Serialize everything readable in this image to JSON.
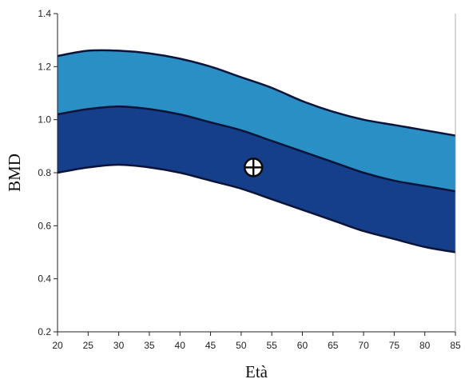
{
  "chart_data": {
    "type": "area",
    "title": "",
    "xlabel": "Età",
    "ylabel": "BMD",
    "xlim": [
      20,
      85
    ],
    "ylim": [
      0.2,
      1.4
    ],
    "x_ticks": [
      20,
      25,
      30,
      35,
      40,
      45,
      50,
      55,
      60,
      65,
      70,
      75,
      80,
      85
    ],
    "y_ticks": [
      0.2,
      0.4,
      0.6,
      0.8,
      1.0,
      1.2,
      1.4
    ],
    "x_tick_labels": [
      "20",
      "25",
      "30",
      "35",
      "40",
      "45",
      "50",
      "55",
      "60",
      "65",
      "70",
      "75",
      "80",
      "85"
    ],
    "y_tick_labels": [
      "0.2",
      "0.4",
      "0.6",
      "0.8",
      "1.0",
      "1.2",
      "1.4"
    ],
    "x": [
      20,
      25,
      30,
      35,
      40,
      45,
      50,
      55,
      60,
      65,
      70,
      75,
      80,
      85
    ],
    "bands": [
      {
        "color": "#2a8fc4",
        "lower": [
          1.02,
          1.04,
          1.05,
          1.04,
          1.02,
          0.99,
          0.96,
          0.92,
          0.88,
          0.84,
          0.8,
          0.77,
          0.75,
          0.73
        ],
        "upper": [
          1.24,
          1.26,
          1.26,
          1.25,
          1.23,
          1.2,
          1.16,
          1.12,
          1.07,
          1.03,
          1.0,
          0.98,
          0.96,
          0.94
        ]
      },
      {
        "color": "#153f8a",
        "lower": [
          0.8,
          0.82,
          0.83,
          0.82,
          0.8,
          0.77,
          0.74,
          0.7,
          0.66,
          0.62,
          0.58,
          0.55,
          0.52,
          0.5
        ],
        "upper": [
          1.02,
          1.04,
          1.05,
          1.04,
          1.02,
          0.99,
          0.96,
          0.92,
          0.88,
          0.84,
          0.8,
          0.77,
          0.75,
          0.73
        ]
      }
    ],
    "points": [
      {
        "x": 52,
        "y": 0.82
      }
    ],
    "grid": false,
    "legend": "none"
  }
}
